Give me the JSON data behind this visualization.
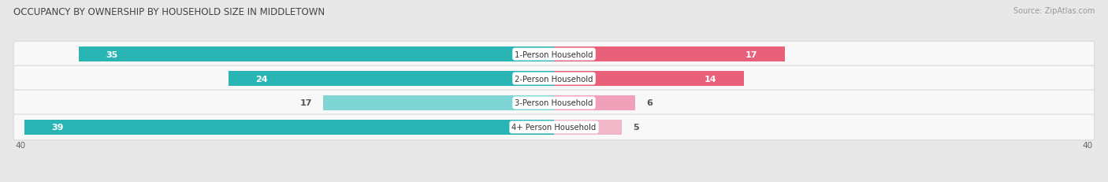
{
  "title": "OCCUPANCY BY OWNERSHIP BY HOUSEHOLD SIZE IN MIDDLETOWN",
  "source": "Source: ZipAtlas.com",
  "categories": [
    "1-Person Household",
    "2-Person Household",
    "3-Person Household",
    "4+ Person Household"
  ],
  "owner_values": [
    35,
    24,
    17,
    39
  ],
  "renter_values": [
    17,
    14,
    6,
    5
  ],
  "owner_colors": [
    "#2ab5b5",
    "#2ab5b5",
    "#7fd4d4",
    "#2ab5b5"
  ],
  "renter_colors": [
    "#e8607a",
    "#e8607a",
    "#f0a0b8",
    "#f0b8c8"
  ],
  "axis_max": 40,
  "bg_color": "#e8e8e8",
  "row_bg": "#f8f8f8",
  "row_border": "#d8d8d8",
  "legend_owner_color": "#2ab5b5",
  "legend_renter_color": "#e8607a",
  "owner_label_colors": [
    "#ffffff",
    "#ffffff",
    "#555555",
    "#ffffff"
  ],
  "renter_label_colors": [
    "#ffffff",
    "#ffffff",
    "#555555",
    "#555555"
  ]
}
